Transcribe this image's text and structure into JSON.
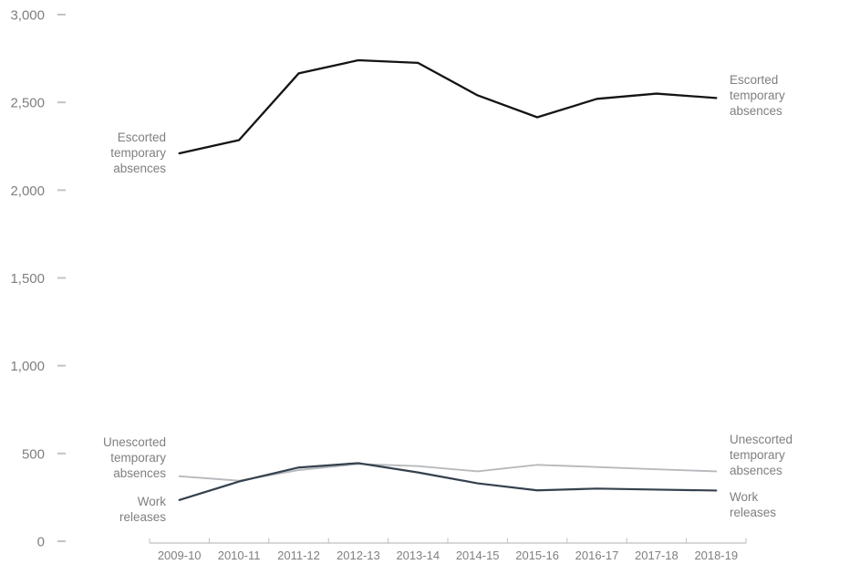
{
  "chart_data": {
    "type": "line",
    "title": "",
    "categories": [
      "2009-10",
      "2010-11",
      "2011-12",
      "2012-13",
      "2013-14",
      "2014-15",
      "2015-16",
      "2016-17",
      "2017-18",
      "2018-19"
    ],
    "series": [
      {
        "key": "unescorted",
        "name": "Unescorted temporary absences",
        "color": "#b7babd",
        "values": [
          370,
          345,
          405,
          440,
          428,
          398,
          435,
          423,
          410,
          398
        ]
      },
      {
        "key": "work",
        "name": "Work releases",
        "color": "#35414e",
        "values": [
          235,
          340,
          420,
          445,
          392,
          330,
          290,
          300,
          294,
          289
        ]
      },
      {
        "key": "escorted",
        "name": "Escorted temporary absences",
        "color": "#141414",
        "values": [
          2210,
          2285,
          2665,
          2740,
          2725,
          2540,
          2415,
          2520,
          2550,
          2525
        ]
      }
    ],
    "x_axis": {
      "tick_labels": [
        "2009-10",
        "2010-11",
        "2011-12",
        "2012-13",
        "2013-14",
        "2014-15",
        "2015-16",
        "2016-17",
        "2017-18",
        "2018-19"
      ]
    },
    "y_axis": {
      "min": 0,
      "max": 3000,
      "step": 500,
      "tick_labels": [
        "0",
        "500",
        "1,000",
        "1,500",
        "2,000",
        "2,500",
        "3,000"
      ]
    },
    "grid": false,
    "legend_position": "direct labels at both line ends",
    "colors": {
      "axis_line": "#bfbfbf",
      "axis_tick": "#c3c3c3",
      "axis_text": "#7f7f7f",
      "series_label_text": "#7f7f7f"
    }
  },
  "series_labels": {
    "escorted": "Escorted temporary absences",
    "unescorted": "Unescorted temporary absences",
    "work": "Work releases"
  }
}
